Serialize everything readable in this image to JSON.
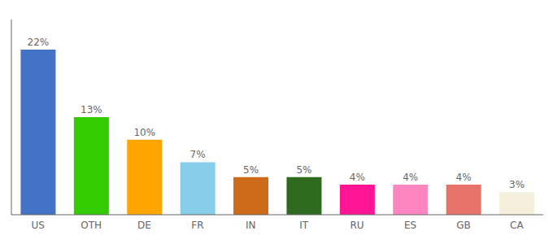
{
  "chart_data": {
    "type": "bar",
    "categories": [
      "US",
      "OTH",
      "DE",
      "FR",
      "IN",
      "IT",
      "RU",
      "ES",
      "GB",
      "CA"
    ],
    "values": [
      22,
      13,
      10,
      7,
      5,
      5,
      4,
      4,
      4,
      3
    ],
    "value_labels": [
      "22%",
      "13%",
      "10%",
      "7%",
      "5%",
      "5%",
      "4%",
      "4%",
      "4%",
      "3%"
    ],
    "data_labels": true,
    "colors": [
      "#4472C4",
      "#33CC00",
      "#FFA500",
      "#87CEEB",
      "#CD6B1A",
      "#2E6B1F",
      "#FF1493",
      "#FF85C0",
      "#E8736B",
      "#F5F0DC"
    ],
    "ylim": [
      0,
      26
    ],
    "tick_labels": "x",
    "grid": false
  }
}
